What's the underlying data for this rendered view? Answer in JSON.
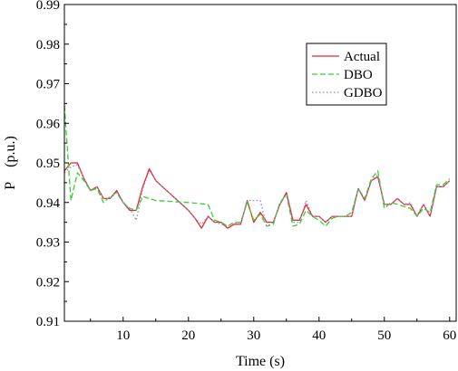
{
  "chart_data": {
    "type": "line",
    "title": "",
    "xlabel": "Time (s)",
    "ylabel": "P (p.u.)",
    "xlim": [
      1,
      61
    ],
    "ylim": [
      0.91,
      0.99
    ],
    "xticks": [
      10,
      20,
      30,
      40,
      50,
      60
    ],
    "yticks": [
      0.91,
      0.92,
      0.93,
      0.94,
      0.95,
      0.96,
      0.97,
      0.98,
      0.99
    ],
    "grid": false,
    "legend_position": "top-right",
    "series": [
      {
        "name": "Actual",
        "color": "#e8262a",
        "style": "solid",
        "points": [
          [
            1,
            0.948
          ],
          [
            2,
            0.95
          ],
          [
            3,
            0.95
          ],
          [
            4,
            0.946
          ],
          [
            5,
            0.943
          ],
          [
            6,
            0.944
          ],
          [
            7,
            0.941
          ],
          [
            8,
            0.941
          ],
          [
            9,
            0.943
          ],
          [
            10,
            0.94
          ],
          [
            11,
            0.938
          ],
          [
            12,
            0.938
          ],
          [
            13,
            0.944
          ],
          [
            14,
            0.9485
          ],
          [
            15,
            0.9455
          ],
          [
            16,
            0.944
          ],
          [
            17,
            0.9425
          ],
          [
            18,
            0.941
          ],
          [
            19,
            0.9395
          ],
          [
            20,
            0.938
          ],
          [
            21,
            0.936
          ],
          [
            22,
            0.9335
          ],
          [
            23,
            0.9365
          ],
          [
            24,
            0.935
          ],
          [
            25,
            0.935
          ],
          [
            26,
            0.9335
          ],
          [
            27,
            0.9345
          ],
          [
            28,
            0.9345
          ],
          [
            29,
            0.9405
          ],
          [
            30,
            0.935
          ],
          [
            31,
            0.9375
          ],
          [
            32,
            0.935
          ],
          [
            33,
            0.935
          ],
          [
            34,
            0.9395
          ],
          [
            35,
            0.9425
          ],
          [
            36,
            0.9355
          ],
          [
            37,
            0.9355
          ],
          [
            38,
            0.9395
          ],
          [
            39,
            0.9365
          ],
          [
            40,
            0.9365
          ],
          [
            41,
            0.935
          ],
          [
            42,
            0.9365
          ],
          [
            43,
            0.9365
          ],
          [
            44,
            0.9365
          ],
          [
            45,
            0.9365
          ],
          [
            46,
            0.9435
          ],
          [
            47,
            0.9405
          ],
          [
            48,
            0.9455
          ],
          [
            49,
            0.9465
          ],
          [
            50,
            0.9395
          ],
          [
            51,
            0.9395
          ],
          [
            52,
            0.941
          ],
          [
            53,
            0.9395
          ],
          [
            54,
            0.9395
          ],
          [
            55,
            0.9365
          ],
          [
            56,
            0.9395
          ],
          [
            57,
            0.9365
          ],
          [
            58,
            0.944
          ],
          [
            59,
            0.944
          ],
          [
            60,
            0.9455
          ]
        ]
      },
      {
        "name": "DBO",
        "color": "#37d12f",
        "style": "dashed",
        "points": [
          [
            1,
            0.9645
          ],
          [
            2,
            0.9405
          ],
          [
            3,
            0.9475
          ],
          [
            4,
            0.9455
          ],
          [
            5,
            0.943
          ],
          [
            6,
            0.9435
          ],
          [
            7,
            0.94
          ],
          [
            8,
            0.9415
          ],
          [
            9,
            0.9425
          ],
          [
            10,
            0.94
          ],
          [
            11,
            0.9385
          ],
          [
            12,
            0.938
          ],
          [
            13,
            0.9415
          ],
          [
            14,
            0.941
          ],
          [
            15,
            0.9405
          ],
          [
            20,
            0.94
          ],
          [
            23,
            0.9395
          ],
          [
            24,
            0.9355
          ],
          [
            25,
            0.935
          ],
          [
            26,
            0.934
          ],
          [
            27,
            0.935
          ],
          [
            28,
            0.935
          ],
          [
            29,
            0.94
          ],
          [
            30,
            0.9355
          ],
          [
            31,
            0.937
          ],
          [
            32,
            0.934
          ],
          [
            33,
            0.9345
          ],
          [
            34,
            0.94
          ],
          [
            35,
            0.942
          ],
          [
            36,
            0.934
          ],
          [
            37,
            0.9345
          ],
          [
            38,
            0.938
          ],
          [
            39,
            0.9365
          ],
          [
            40,
            0.9355
          ],
          [
            41,
            0.934
          ],
          [
            42,
            0.936
          ],
          [
            43,
            0.9365
          ],
          [
            44,
            0.9365
          ],
          [
            45,
            0.9375
          ],
          [
            46,
            0.9435
          ],
          [
            47,
            0.941
          ],
          [
            48,
            0.946
          ],
          [
            49,
            0.948
          ],
          [
            50,
            0.9385
          ],
          [
            51,
            0.94
          ],
          [
            52,
            0.9395
          ],
          [
            53,
            0.939
          ],
          [
            54,
            0.9385
          ],
          [
            55,
            0.9365
          ],
          [
            56,
            0.9385
          ],
          [
            57,
            0.9375
          ],
          [
            58,
            0.9445
          ],
          [
            59,
            0.9445
          ],
          [
            60,
            0.946
          ]
        ]
      },
      {
        "name": "GDBO",
        "color": "#8a8fc4",
        "style": "dotted",
        "points": [
          [
            1,
            0.9475
          ],
          [
            2,
            0.949
          ],
          [
            3,
            0.9495
          ],
          [
            4,
            0.946
          ],
          [
            5,
            0.943
          ],
          [
            6,
            0.944
          ],
          [
            7,
            0.941
          ],
          [
            8,
            0.941
          ],
          [
            9,
            0.9425
          ],
          [
            10,
            0.94
          ],
          [
            11,
            0.9385
          ],
          [
            12,
            0.9355
          ],
          [
            13,
            0.9435
          ],
          [
            14,
            0.948
          ],
          [
            15,
            0.9455
          ],
          [
            16,
            0.944
          ],
          [
            17,
            0.9425
          ],
          [
            18,
            0.941
          ],
          [
            19,
            0.9395
          ],
          [
            20,
            0.938
          ],
          [
            21,
            0.936
          ],
          [
            22,
            0.9345
          ],
          [
            23,
            0.9365
          ],
          [
            24,
            0.935
          ],
          [
            25,
            0.9345
          ],
          [
            26,
            0.934
          ],
          [
            27,
            0.935
          ],
          [
            28,
            0.9345
          ],
          [
            29,
            0.9405
          ],
          [
            30,
            0.9405
          ],
          [
            31,
            0.9405
          ],
          [
            32,
            0.934
          ],
          [
            33,
            0.935
          ],
          [
            34,
            0.9395
          ],
          [
            35,
            0.942
          ],
          [
            36,
            0.935
          ],
          [
            37,
            0.935
          ],
          [
            38,
            0.9405
          ],
          [
            39,
            0.9365
          ],
          [
            40,
            0.9365
          ],
          [
            41,
            0.935
          ],
          [
            42,
            0.9365
          ],
          [
            43,
            0.9365
          ],
          [
            44,
            0.9365
          ],
          [
            45,
            0.9365
          ],
          [
            46,
            0.9435
          ],
          [
            47,
            0.9405
          ],
          [
            48,
            0.9455
          ],
          [
            49,
            0.947
          ],
          [
            50,
            0.9395
          ],
          [
            51,
            0.9395
          ],
          [
            52,
            0.941
          ],
          [
            53,
            0.9395
          ],
          [
            54,
            0.94
          ],
          [
            55,
            0.9365
          ],
          [
            56,
            0.9395
          ],
          [
            57,
            0.9365
          ],
          [
            58,
            0.944
          ],
          [
            59,
            0.944
          ],
          [
            60,
            0.9455
          ]
        ]
      }
    ]
  }
}
